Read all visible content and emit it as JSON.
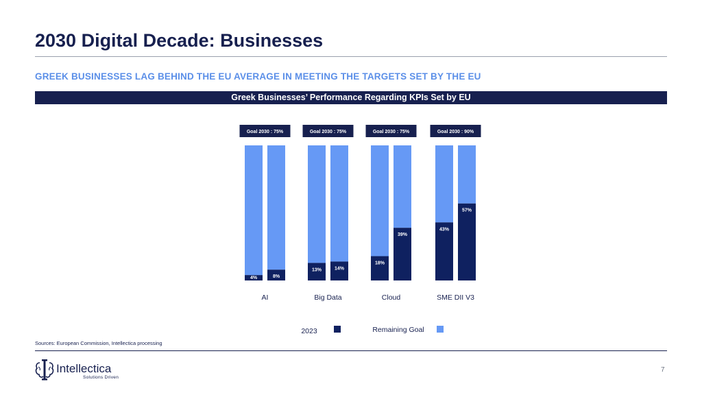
{
  "page": {
    "title": "2030 Digital Decade: Businesses",
    "subtitle": "GREEK BUSINESSES LAG BEHIND THE EU AVERAGE IN MEETING THE TARGETS SET BY THE EU",
    "banner": "Greek Businesses’ Performance Regarding KPIs Set by EU",
    "sources": "Sources: European Commission, Intellectica processing",
    "page_number": "7"
  },
  "logo": {
    "name": "Intellectica",
    "tagline": "Solutions Driven",
    "icon": "brain-pillar-icon"
  },
  "colors": {
    "navy": "#17204f",
    "accent_blue": "#5b8fe8",
    "series_2023": "#0f2160",
    "series_remaining": "#6699f5"
  },
  "chart_data": {
    "type": "bar",
    "stacked": true,
    "title": "Greek Businesses’ Performance Regarding KPIs Set by EU",
    "categories": [
      "AI",
      "Big Data",
      "Cloud",
      "SME DII V3"
    ],
    "goal_labels": [
      "Goal 2030 : 75%",
      "Goal 2030 : 75%",
      "Goal 2030 : 75%",
      "Goal 2030 : 90%"
    ],
    "series": [
      {
        "name": "2023",
        "values": [
          [
            4,
            8
          ],
          [
            13,
            14
          ],
          [
            18,
            39
          ],
          [
            43,
            57
          ]
        ],
        "labels": [
          [
            "4%",
            "8%"
          ],
          [
            "13%",
            "14%"
          ],
          [
            "18%",
            "39%"
          ],
          [
            "43%",
            "57%"
          ]
        ]
      },
      {
        "name": "Remaining Goal",
        "values": [
          [
            96,
            92
          ],
          [
            87,
            86
          ],
          [
            82,
            61
          ],
          [
            57,
            43
          ]
        ]
      }
    ],
    "legend": [
      "2023",
      "Remaining Goal"
    ],
    "legend_position": "bottom",
    "ylim": [
      0,
      100
    ],
    "xlabel": "",
    "ylabel": "",
    "grid": false
  }
}
